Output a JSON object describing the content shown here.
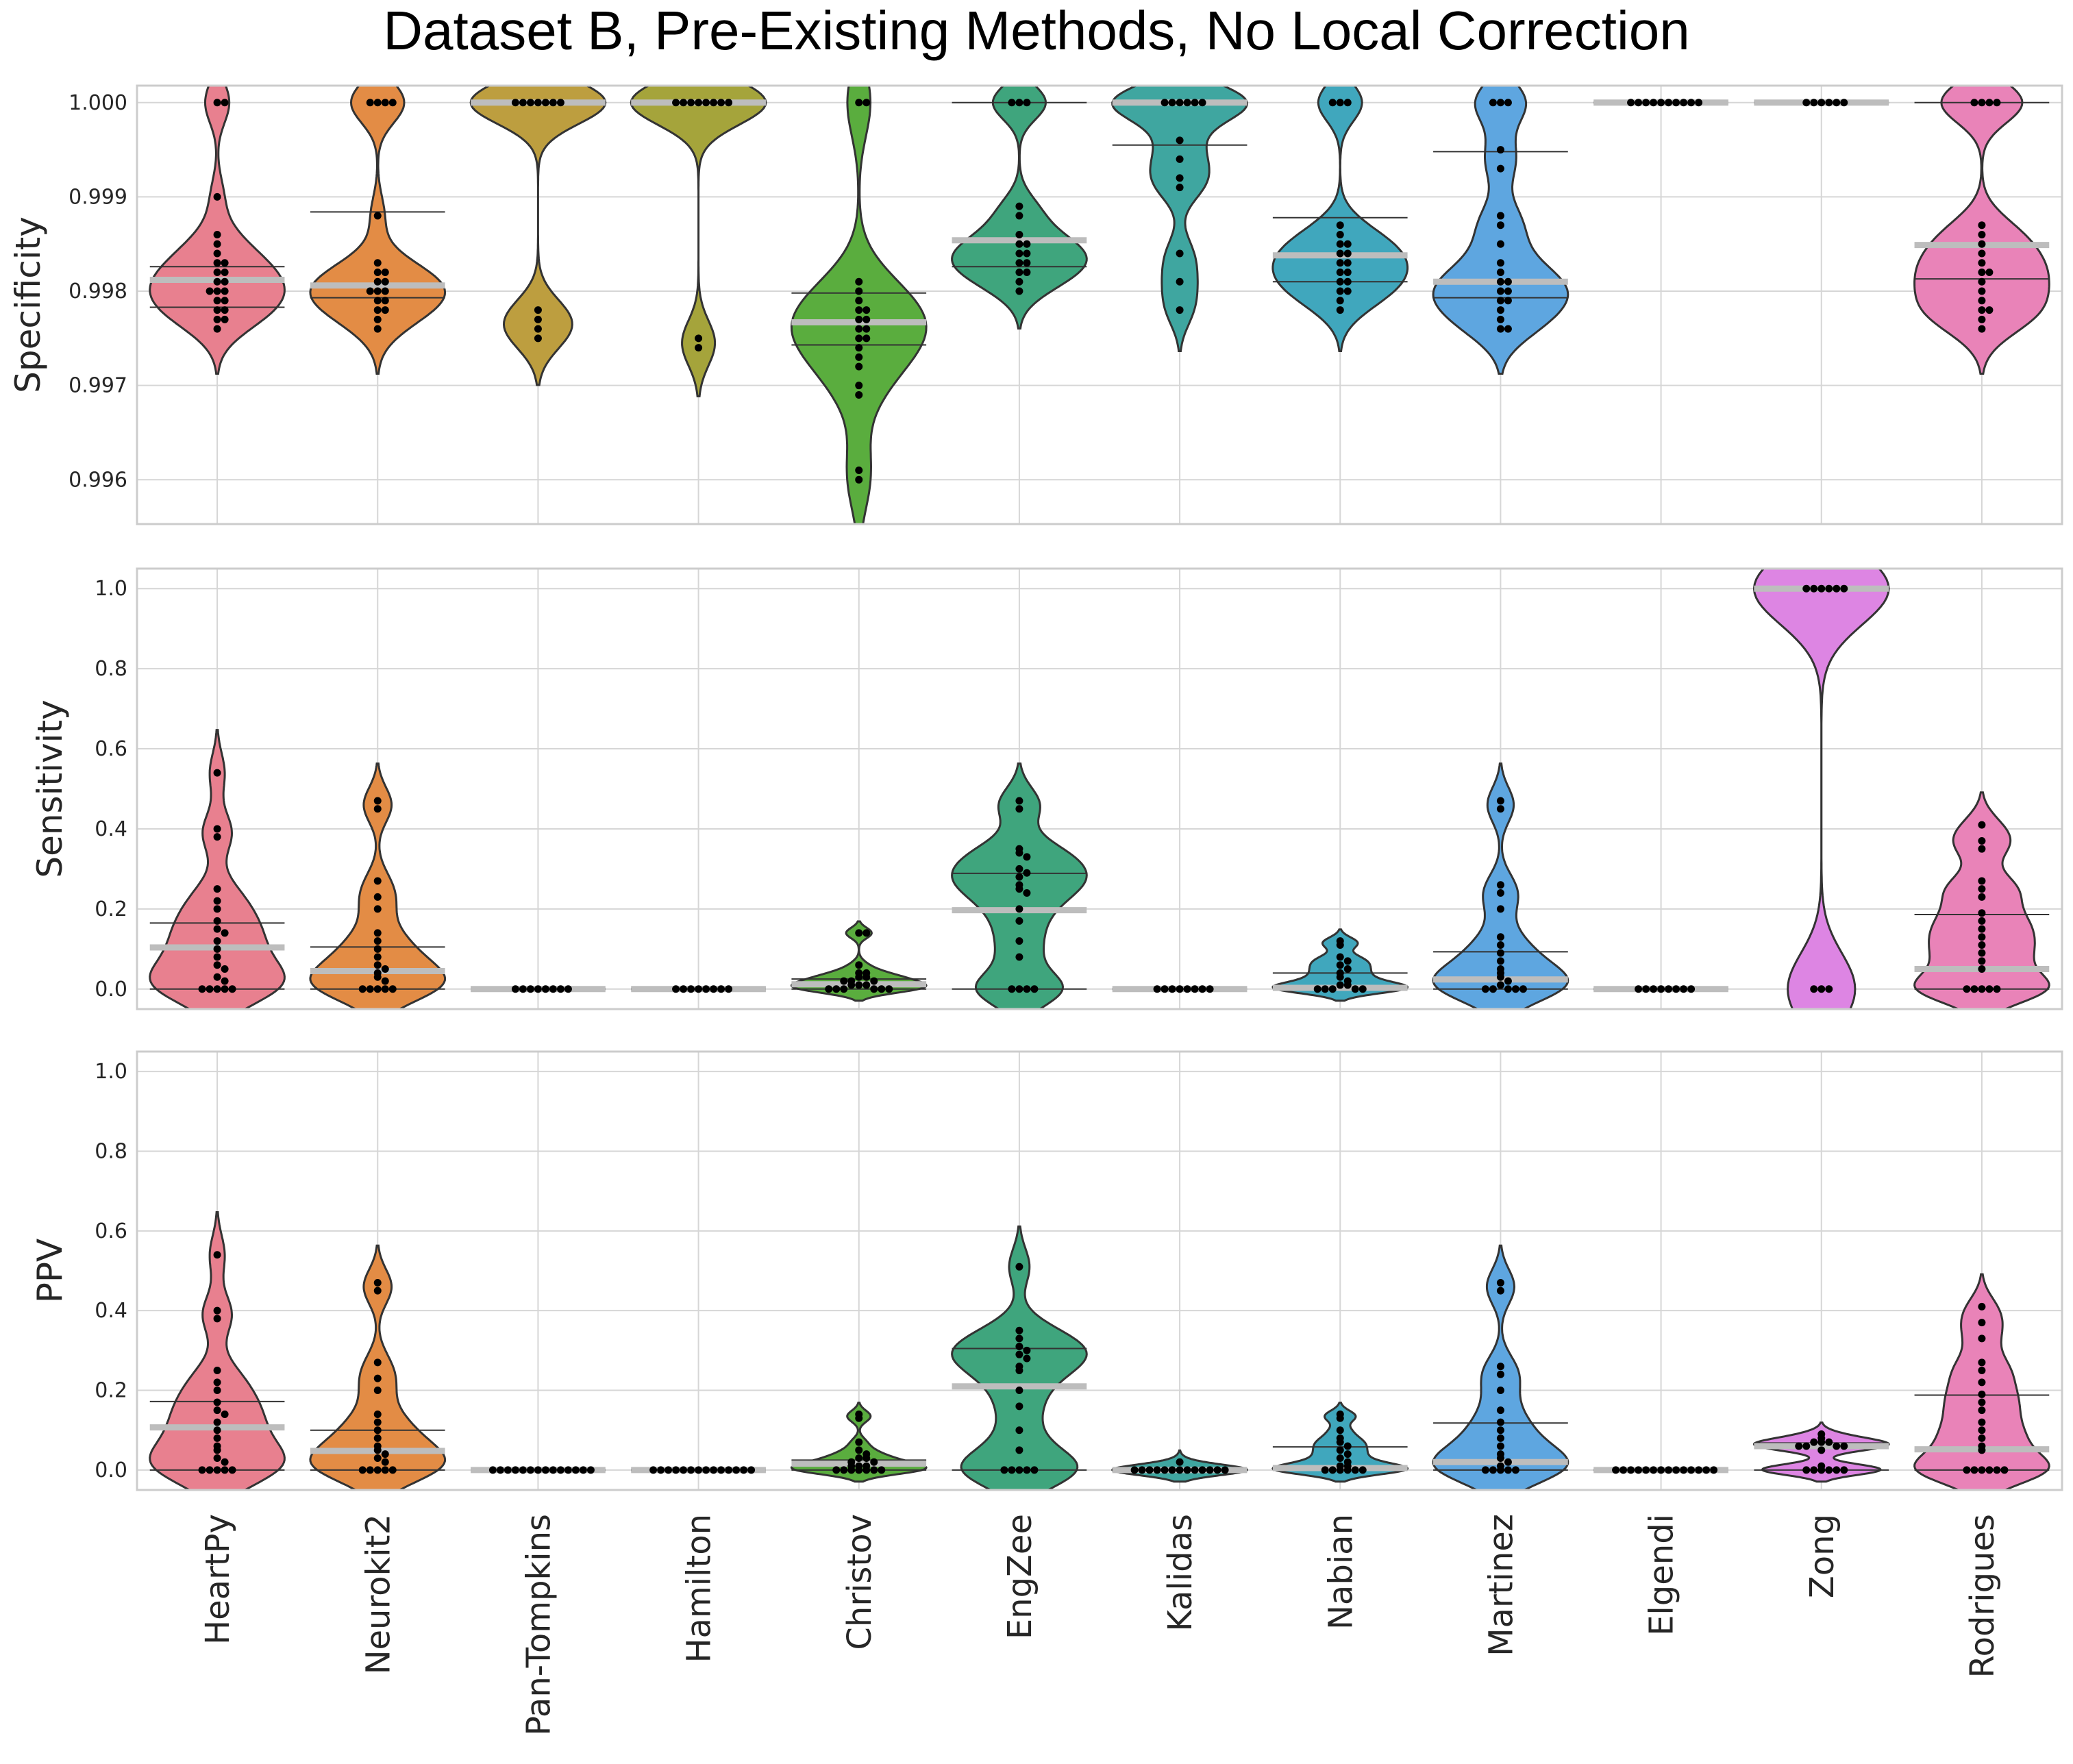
{
  "chart_data": {
    "type": "violin",
    "title": "Dataset B, Pre-Existing Methods, No Local Correction",
    "categories": [
      "HeartPy",
      "Neurokit2",
      "Pan-Tompkins",
      "Hamilton",
      "Christov",
      "EngZee",
      "Kalidas",
      "Nabian",
      "Martinez",
      "Elgendi",
      "Zong",
      "Rodrigues"
    ],
    "colors": [
      "#e8808f",
      "#e38c45",
      "#bd9e3f",
      "#a5a43b",
      "#5aad3e",
      "#3fa57d",
      "#3fa6a0",
      "#40a7bd",
      "#5ea6e0",
      "#a39de8",
      "#dd85e3",
      "#e983b8"
    ],
    "panels": [
      {
        "ylabel": "Specificity",
        "ylim": [
          0.99553,
          1.00018
        ],
        "yticks": [
          "0.996",
          "0.997",
          "0.998",
          "0.999",
          "1.000"
        ],
        "series": [
          {
            "name": "HeartPy",
            "mean": 0.99812,
            "q1": 0.99783,
            "q3": 0.99826,
            "points": [
              1.0,
              1.0,
              0.999,
              0.9986,
              0.9985,
              0.9984,
              0.9983,
              0.9983,
              0.9982,
              0.9982,
              0.9981,
              0.9981,
              0.998,
              0.998,
              0.998,
              0.9979,
              0.9979,
              0.9978,
              0.9978,
              0.9977,
              0.9977,
              0.9976
            ]
          },
          {
            "name": "Neurokit2",
            "mean": 0.99806,
            "q1": 0.99793,
            "q3": 0.99884,
            "points": [
              1.0,
              1.0,
              1.0,
              1.0,
              0.9988,
              0.9983,
              0.9982,
              0.9982,
              0.9981,
              0.9981,
              0.998,
              0.998,
              0.998,
              0.9979,
              0.9979,
              0.9978,
              0.9978,
              0.9977,
              0.9976
            ]
          },
          {
            "name": "Pan-Tompkins",
            "mean": 1.0,
            "q1": 1.0,
            "q3": 1.0,
            "points": [
              1.0,
              1.0,
              1.0,
              1.0,
              1.0,
              1.0,
              1.0,
              0.9978,
              0.9977,
              0.9976,
              0.9975
            ]
          },
          {
            "name": "Hamilton",
            "mean": 1.0,
            "q1": 1.0,
            "q3": 1.0,
            "points": [
              1.0,
              1.0,
              1.0,
              1.0,
              1.0,
              1.0,
              1.0,
              1.0,
              0.9975,
              0.9974
            ]
          },
          {
            "name": "Christov",
            "mean": 0.99767,
            "q1": 0.99743,
            "q3": 0.99798,
            "points": [
              1.0,
              1.0,
              0.9981,
              0.998,
              0.9979,
              0.9978,
              0.9978,
              0.9977,
              0.9977,
              0.9976,
              0.9976,
              0.9975,
              0.9975,
              0.9974,
              0.9973,
              0.9972,
              0.997,
              0.9969,
              0.9961,
              0.996
            ]
          },
          {
            "name": "EngZee",
            "mean": 0.99854,
            "q1": 0.99826,
            "q3": 1.0,
            "points": [
              1.0,
              1.0,
              1.0,
              0.9989,
              0.9988,
              0.9986,
              0.9985,
              0.9985,
              0.9984,
              0.9984,
              0.9983,
              0.9983,
              0.9982,
              0.9982,
              0.9981,
              0.998
            ]
          },
          {
            "name": "Kalidas",
            "mean": 1.0,
            "q1": 0.99955,
            "q3": 1.0,
            "points": [
              1.0,
              1.0,
              1.0,
              1.0,
              1.0,
              1.0,
              0.9996,
              0.9994,
              0.9992,
              0.9991,
              0.9984,
              0.9981,
              0.9978
            ]
          },
          {
            "name": "Nabian",
            "mean": 0.99838,
            "q1": 0.9981,
            "q3": 0.99878,
            "points": [
              1.0,
              1.0,
              1.0,
              0.9987,
              0.9986,
              0.9985,
              0.9985,
              0.9984,
              0.9984,
              0.9983,
              0.9983,
              0.9982,
              0.9982,
              0.9981,
              0.9981,
              0.998,
              0.998,
              0.9979,
              0.9978
            ]
          },
          {
            "name": "Martinez",
            "mean": 0.9981,
            "q1": 0.99793,
            "q3": 0.99948,
            "points": [
              1.0,
              1.0,
              1.0,
              0.9995,
              0.9993,
              0.9988,
              0.9987,
              0.9985,
              0.9983,
              0.9982,
              0.9981,
              0.9981,
              0.998,
              0.998,
              0.9979,
              0.9979,
              0.9978,
              0.9977,
              0.9976,
              0.9976
            ]
          },
          {
            "name": "Elgendi",
            "mean": 1.0,
            "q1": 1.0,
            "q3": 1.0,
            "points": [
              1.0,
              1.0,
              1.0,
              1.0,
              1.0,
              1.0,
              1.0,
              1.0,
              1.0,
              1.0
            ]
          },
          {
            "name": "Zong",
            "mean": 1.0,
            "q1": 1.0,
            "q3": 1.0,
            "points": [
              1.0,
              1.0,
              1.0,
              1.0,
              1.0,
              1.0
            ]
          },
          {
            "name": "Rodrigues",
            "mean": 0.99849,
            "q1": 0.99813,
            "q3": 1.0,
            "points": [
              1.0,
              1.0,
              1.0,
              1.0,
              0.9987,
              0.9986,
              0.9985,
              0.9984,
              0.9983,
              0.9982,
              0.9982,
              0.9981,
              0.998,
              0.9979,
              0.9978,
              0.9978,
              0.9977,
              0.9976
            ]
          }
        ]
      },
      {
        "ylabel": "Sensitivity",
        "ylim": [
          -0.05,
          1.05
        ],
        "yticks": [
          "0.0",
          "0.2",
          "0.4",
          "0.6",
          "0.8",
          "1.0"
        ],
        "series": [
          {
            "name": "HeartPy",
            "mean": 0.104,
            "q1": 0.0,
            "q3": 0.165,
            "points": [
              0.54,
              0.4,
              0.38,
              0.25,
              0.22,
              0.2,
              0.17,
              0.15,
              0.14,
              0.12,
              0.1,
              0.08,
              0.06,
              0.05,
              0.03,
              0.02,
              0.0,
              0.0,
              0.0,
              0.0,
              0.0
            ]
          },
          {
            "name": "Neurokit2",
            "mean": 0.045,
            "q1": 0.0,
            "q3": 0.105,
            "points": [
              0.47,
              0.45,
              0.27,
              0.23,
              0.2,
              0.14,
              0.12,
              0.1,
              0.08,
              0.06,
              0.05,
              0.04,
              0.03,
              0.02,
              0.0,
              0.0,
              0.0,
              0.0,
              0.0
            ]
          },
          {
            "name": "Pan-Tompkins",
            "mean": 0.0,
            "q1": 0.0,
            "q3": 0.0,
            "points": [
              0.0,
              0.0,
              0.0,
              0.0,
              0.0,
              0.0,
              0.0,
              0.0
            ]
          },
          {
            "name": "Hamilton",
            "mean": 0.0,
            "q1": 0.0,
            "q3": 0.0,
            "points": [
              0.0,
              0.0,
              0.0,
              0.0,
              0.0,
              0.0,
              0.0,
              0.0
            ]
          },
          {
            "name": "Christov",
            "mean": 0.012,
            "q1": 0.0,
            "q3": 0.025,
            "points": [
              0.14,
              0.14,
              0.06,
              0.04,
              0.04,
              0.03,
              0.03,
              0.02,
              0.02,
              0.02,
              0.01,
              0.01,
              0.01,
              0.0,
              0.0,
              0.0,
              0.0,
              0.0,
              0.0
            ]
          },
          {
            "name": "EngZee",
            "mean": 0.197,
            "q1": 0.0,
            "q3": 0.289,
            "points": [
              0.47,
              0.45,
              0.35,
              0.34,
              0.33,
              0.3,
              0.29,
              0.28,
              0.26,
              0.25,
              0.24,
              0.2,
              0.17,
              0.12,
              0.08,
              0.0,
              0.0,
              0.0,
              0.0
            ]
          },
          {
            "name": "Kalidas",
            "mean": 0.0,
            "q1": 0.0,
            "q3": 0.0,
            "points": [
              0.0,
              0.0,
              0.0,
              0.0,
              0.0,
              0.0,
              0.0,
              0.0
            ]
          },
          {
            "name": "Nabian",
            "mean": 0.003,
            "q1": 0.0,
            "q3": 0.04,
            "points": [
              0.12,
              0.11,
              0.08,
              0.07,
              0.06,
              0.05,
              0.04,
              0.03,
              0.02,
              0.01,
              0.01,
              0.0,
              0.0,
              0.0,
              0.0,
              0.0
            ]
          },
          {
            "name": "Martinez",
            "mean": 0.024,
            "q1": 0.0,
            "q3": 0.093,
            "points": [
              0.47,
              0.45,
              0.26,
              0.24,
              0.2,
              0.13,
              0.11,
              0.09,
              0.07,
              0.05,
              0.04,
              0.03,
              0.02,
              0.01,
              0.0,
              0.0,
              0.0,
              0.0,
              0.0
            ]
          },
          {
            "name": "Elgendi",
            "mean": 0.0,
            "q1": 0.0,
            "q3": 0.0,
            "points": [
              0.0,
              0.0,
              0.0,
              0.0,
              0.0,
              0.0,
              0.0,
              0.0
            ]
          },
          {
            "name": "Zong",
            "mean": 1.0,
            "q1": 1.0,
            "q3": 1.0,
            "points": [
              1.0,
              1.0,
              1.0,
              1.0,
              1.0,
              1.0,
              0.0,
              0.0,
              0.0
            ]
          },
          {
            "name": "Rodrigues",
            "mean": 0.05,
            "q1": 0.0,
            "q3": 0.186,
            "points": [
              0.41,
              0.37,
              0.35,
              0.27,
              0.25,
              0.23,
              0.19,
              0.17,
              0.15,
              0.13,
              0.11,
              0.09,
              0.07,
              0.05,
              0.0,
              0.0,
              0.0,
              0.0,
              0.0
            ]
          }
        ]
      },
      {
        "ylabel": "PPV",
        "ylim": [
          -0.05,
          1.05
        ],
        "yticks": [
          "0.0",
          "0.2",
          "0.4",
          "0.6",
          "0.8",
          "1.0"
        ],
        "series": [
          {
            "name": "HeartPy",
            "mean": 0.107,
            "q1": 0.0,
            "q3": 0.172,
            "points": [
              0.54,
              0.4,
              0.38,
              0.25,
              0.22,
              0.2,
              0.17,
              0.15,
              0.14,
              0.12,
              0.1,
              0.08,
              0.06,
              0.05,
              0.03,
              0.02,
              0.0,
              0.0,
              0.0,
              0.0,
              0.0
            ]
          },
          {
            "name": "Neurokit2",
            "mean": 0.048,
            "q1": 0.0,
            "q3": 0.1,
            "points": [
              0.47,
              0.45,
              0.27,
              0.23,
              0.2,
              0.14,
              0.12,
              0.1,
              0.08,
              0.06,
              0.05,
              0.04,
              0.03,
              0.02,
              0.0,
              0.0,
              0.0,
              0.0,
              0.0
            ]
          },
          {
            "name": "Pan-Tompkins",
            "mean": 0.0,
            "q1": 0.0,
            "q3": 0.0,
            "points": [
              0.0,
              0.0,
              0.0,
              0.0,
              0.0,
              0.0,
              0.0,
              0.0,
              0.0,
              0.0,
              0.0,
              0.0,
              0.0,
              0.0
            ]
          },
          {
            "name": "Hamilton",
            "mean": 0.0,
            "q1": 0.0,
            "q3": 0.0,
            "points": [
              0.0,
              0.0,
              0.0,
              0.0,
              0.0,
              0.0,
              0.0,
              0.0,
              0.0,
              0.0,
              0.0,
              0.0,
              0.0,
              0.0
            ]
          },
          {
            "name": "Christov",
            "mean": 0.016,
            "q1": 0.0,
            "q3": 0.025,
            "points": [
              0.14,
              0.13,
              0.07,
              0.05,
              0.04,
              0.03,
              0.03,
              0.02,
              0.02,
              0.01,
              0.01,
              0.01,
              0.0,
              0.0,
              0.0,
              0.0,
              0.0,
              0.0,
              0.0
            ]
          },
          {
            "name": "EngZee",
            "mean": 0.21,
            "q1": 0.0,
            "q3": 0.305,
            "points": [
              0.51,
              0.35,
              0.33,
              0.31,
              0.3,
              0.29,
              0.28,
              0.26,
              0.25,
              0.2,
              0.16,
              0.1,
              0.05,
              0.0,
              0.0,
              0.0,
              0.0,
              0.0
            ]
          },
          {
            "name": "Kalidas",
            "mean": 0.0,
            "q1": 0.0,
            "q3": 0.0,
            "points": [
              0.02,
              0.0,
              0.0,
              0.0,
              0.0,
              0.0,
              0.0,
              0.0,
              0.0,
              0.0,
              0.0,
              0.0,
              0.0,
              0.0
            ]
          },
          {
            "name": "Nabian",
            "mean": 0.005,
            "q1": 0.0,
            "q3": 0.058,
            "points": [
              0.14,
              0.13,
              0.1,
              0.08,
              0.07,
              0.06,
              0.05,
              0.04,
              0.03,
              0.02,
              0.01,
              0.01,
              0.0,
              0.0,
              0.0,
              0.0,
              0.0,
              0.0
            ]
          },
          {
            "name": "Martinez",
            "mean": 0.02,
            "q1": 0.0,
            "q3": 0.118,
            "points": [
              0.47,
              0.45,
              0.26,
              0.24,
              0.2,
              0.15,
              0.12,
              0.1,
              0.08,
              0.06,
              0.04,
              0.03,
              0.02,
              0.01,
              0.0,
              0.0,
              0.0,
              0.0,
              0.0
            ]
          },
          {
            "name": "Elgendi",
            "mean": 0.0,
            "q1": 0.0,
            "q3": 0.0,
            "points": [
              0.0,
              0.0,
              0.0,
              0.0,
              0.0,
              0.0,
              0.0,
              0.0,
              0.0,
              0.0,
              0.0,
              0.0,
              0.0,
              0.0
            ]
          },
          {
            "name": "Zong",
            "mean": 0.06,
            "q1": 0.0,
            "q3": 0.068,
            "points": [
              0.09,
              0.08,
              0.07,
              0.07,
              0.07,
              0.06,
              0.06,
              0.06,
              0.06,
              0.05,
              0.01,
              0.0,
              0.0,
              0.0,
              0.0,
              0.0,
              0.0
            ]
          },
          {
            "name": "Rodrigues",
            "mean": 0.052,
            "q1": 0.0,
            "q3": 0.188,
            "points": [
              0.41,
              0.37,
              0.33,
              0.27,
              0.25,
              0.22,
              0.19,
              0.17,
              0.15,
              0.12,
              0.1,
              0.08,
              0.06,
              0.05,
              0.0,
              0.0,
              0.0,
              0.0,
              0.0,
              0.0
            ]
          }
        ]
      }
    ]
  }
}
